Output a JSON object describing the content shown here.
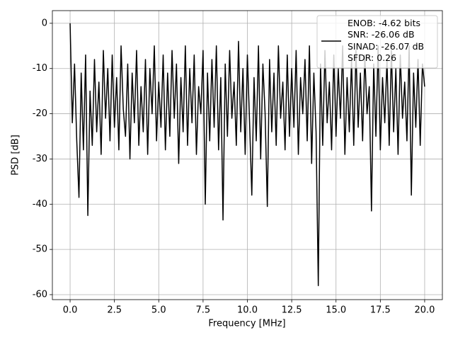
{
  "chart_data": {
    "type": "line",
    "x_label": "Frequency [MHz]",
    "y_label": "PSD [dB]",
    "x": [
      0,
      0.125,
      0.25,
      0.375,
      0.5,
      0.625,
      0.75,
      0.875,
      1,
      1.125,
      1.25,
      1.375,
      1.5,
      1.625,
      1.75,
      1.875,
      2,
      2.125,
      2.25,
      2.375,
      2.5,
      2.625,
      2.75,
      2.875,
      3,
      3.125,
      3.25,
      3.375,
      3.5,
      3.625,
      3.75,
      3.875,
      4,
      4.125,
      4.25,
      4.375,
      4.5,
      4.625,
      4.75,
      4.875,
      5,
      5.125,
      5.25,
      5.375,
      5.5,
      5.625,
      5.75,
      5.875,
      6,
      6.125,
      6.25,
      6.375,
      6.5,
      6.625,
      6.75,
      6.875,
      7,
      7.125,
      7.25,
      7.375,
      7.5,
      7.625,
      7.75,
      7.875,
      8,
      8.125,
      8.25,
      8.375,
      8.5,
      8.625,
      8.75,
      8.875,
      9,
      9.125,
      9.25,
      9.375,
      9.5,
      9.625,
      9.75,
      9.875,
      10,
      10.125,
      10.25,
      10.375,
      10.5,
      10.625,
      10.75,
      10.875,
      11,
      11.125,
      11.25,
      11.375,
      11.5,
      11.625,
      11.75,
      11.875,
      12,
      12.125,
      12.25,
      12.375,
      12.5,
      12.625,
      12.75,
      12.875,
      13,
      13.125,
      13.25,
      13.375,
      13.5,
      13.625,
      13.75,
      13.875,
      14,
      14.125,
      14.25,
      14.375,
      14.5,
      14.625,
      14.75,
      14.875,
      15,
      15.125,
      15.25,
      15.375,
      15.5,
      15.625,
      15.75,
      15.875,
      16,
      16.125,
      16.25,
      16.375,
      16.5,
      16.625,
      16.75,
      16.875,
      17,
      17.125,
      17.25,
      17.375,
      17.5,
      17.625,
      17.75,
      17.875,
      18,
      18.125,
      18.25,
      18.375,
      18.5,
      18.625,
      18.75,
      18.875,
      19,
      19.125,
      19.25,
      19.375,
      19.5,
      19.625,
      19.75,
      19.875,
      20
    ],
    "series": [
      {
        "name": "ENOB: -4.62 bits\nSNR: -26.06 dB\nSINAD: -26.07 dB\nSFDR: 0.26",
        "color": "#000000",
        "values": [
          0,
          -22,
          -9,
          -26,
          -38.5,
          -11,
          -28,
          -7,
          -42.5,
          -15,
          -27,
          -8,
          -24,
          -13,
          -29,
          -6,
          -21,
          -10,
          -26,
          -7,
          -23,
          -12,
          -28,
          -5,
          -19,
          -25,
          -9,
          -30,
          -11,
          -22,
          -6,
          -27,
          -14,
          -24,
          -8,
          -29,
          -10,
          -20,
          -5,
          -26,
          -13,
          -23,
          -7,
          -28,
          -11,
          -25,
          -6,
          -21,
          -9,
          -31,
          -12,
          -24,
          -5,
          -27,
          -10,
          -22,
          -7,
          -29,
          -14,
          -20,
          -6,
          -40,
          -11,
          -26,
          -8,
          -23,
          -5,
          -28,
          -12,
          -43.5,
          -9,
          -25,
          -6,
          -21,
          -13,
          -27,
          -4,
          -24,
          -10,
          -29,
          -7,
          -22,
          -38,
          -12,
          -26,
          -5,
          -30,
          -9,
          -20,
          -40.5,
          -8,
          -24,
          -11,
          -27,
          -5,
          -21,
          -13,
          -28,
          -7,
          -25,
          -10,
          -23,
          -6,
          -29,
          -12,
          -20,
          -8,
          -26,
          -5,
          -31,
          -11,
          -24,
          -58,
          -9,
          -27,
          -6,
          -22,
          -13,
          -28,
          -7,
          -25,
          -10,
          -21,
          -5,
          -29,
          -12,
          -24,
          -8,
          -27,
          -6,
          -23,
          -11,
          -26,
          -7,
          -20,
          -14,
          -41.5,
          -9,
          -25,
          -5,
          -28,
          -12,
          -22,
          -8,
          -27,
          -6,
          -24,
          -10,
          -29,
          -7,
          -21,
          -13,
          -26,
          -5,
          -38,
          -11,
          -23,
          -8,
          -27,
          -9,
          -14
        ]
      }
    ],
    "xlim": [
      -1,
      21
    ],
    "ylim": [
      -61.1,
      2.8
    ],
    "xticks": [
      {
        "value": 0,
        "label": "0.0"
      },
      {
        "value": 2.5,
        "label": "2.5"
      },
      {
        "value": 5,
        "label": "5.0"
      },
      {
        "value": 7.5,
        "label": "7.5"
      },
      {
        "value": 10,
        "label": "10.0"
      },
      {
        "value": 12.5,
        "label": "12.5"
      },
      {
        "value": 15,
        "label": "15.0"
      },
      {
        "value": 17.5,
        "label": "17.5"
      },
      {
        "value": 20,
        "label": "20.0"
      }
    ],
    "yticks": [
      0,
      -10,
      -20,
      -30,
      -40,
      -50,
      -60
    ],
    "grid": true,
    "legend": "upper right"
  }
}
